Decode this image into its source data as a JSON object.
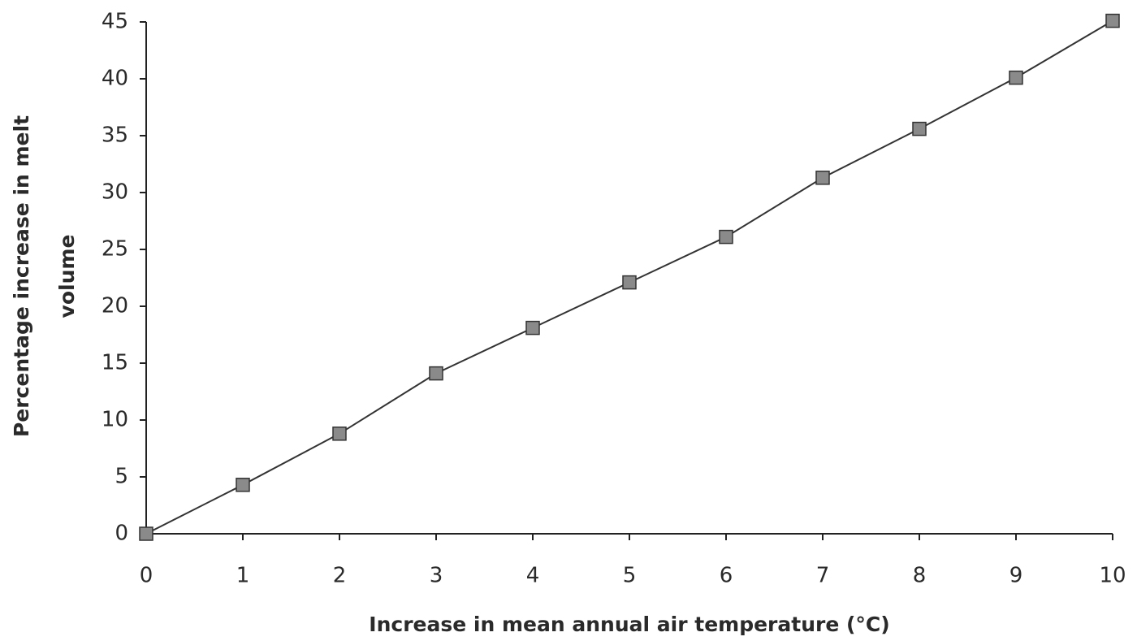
{
  "chart_data": {
    "type": "line",
    "xlabel": "Increase in mean annual air temperature (°C)",
    "ylabel": [
      "Percentage increase in melt",
      "volume"
    ],
    "x": [
      0,
      1,
      2,
      3,
      4,
      5,
      6,
      7,
      8,
      9,
      10
    ],
    "values": [
      0,
      4.3,
      8.8,
      14.1,
      18.1,
      22.1,
      26.1,
      31.3,
      35.6,
      40.1,
      45.1
    ],
    "color": "#333333",
    "marker_color": "#8a8a8a",
    "xlim": [
      0,
      10
    ],
    "xticks": [
      0,
      1,
      2,
      3,
      4,
      5,
      6,
      7,
      8,
      9,
      10
    ],
    "ylim": [
      0,
      45
    ],
    "yticks": [
      0,
      5,
      10,
      15,
      20,
      25,
      30,
      35,
      40,
      45
    ],
    "grid": false
  }
}
